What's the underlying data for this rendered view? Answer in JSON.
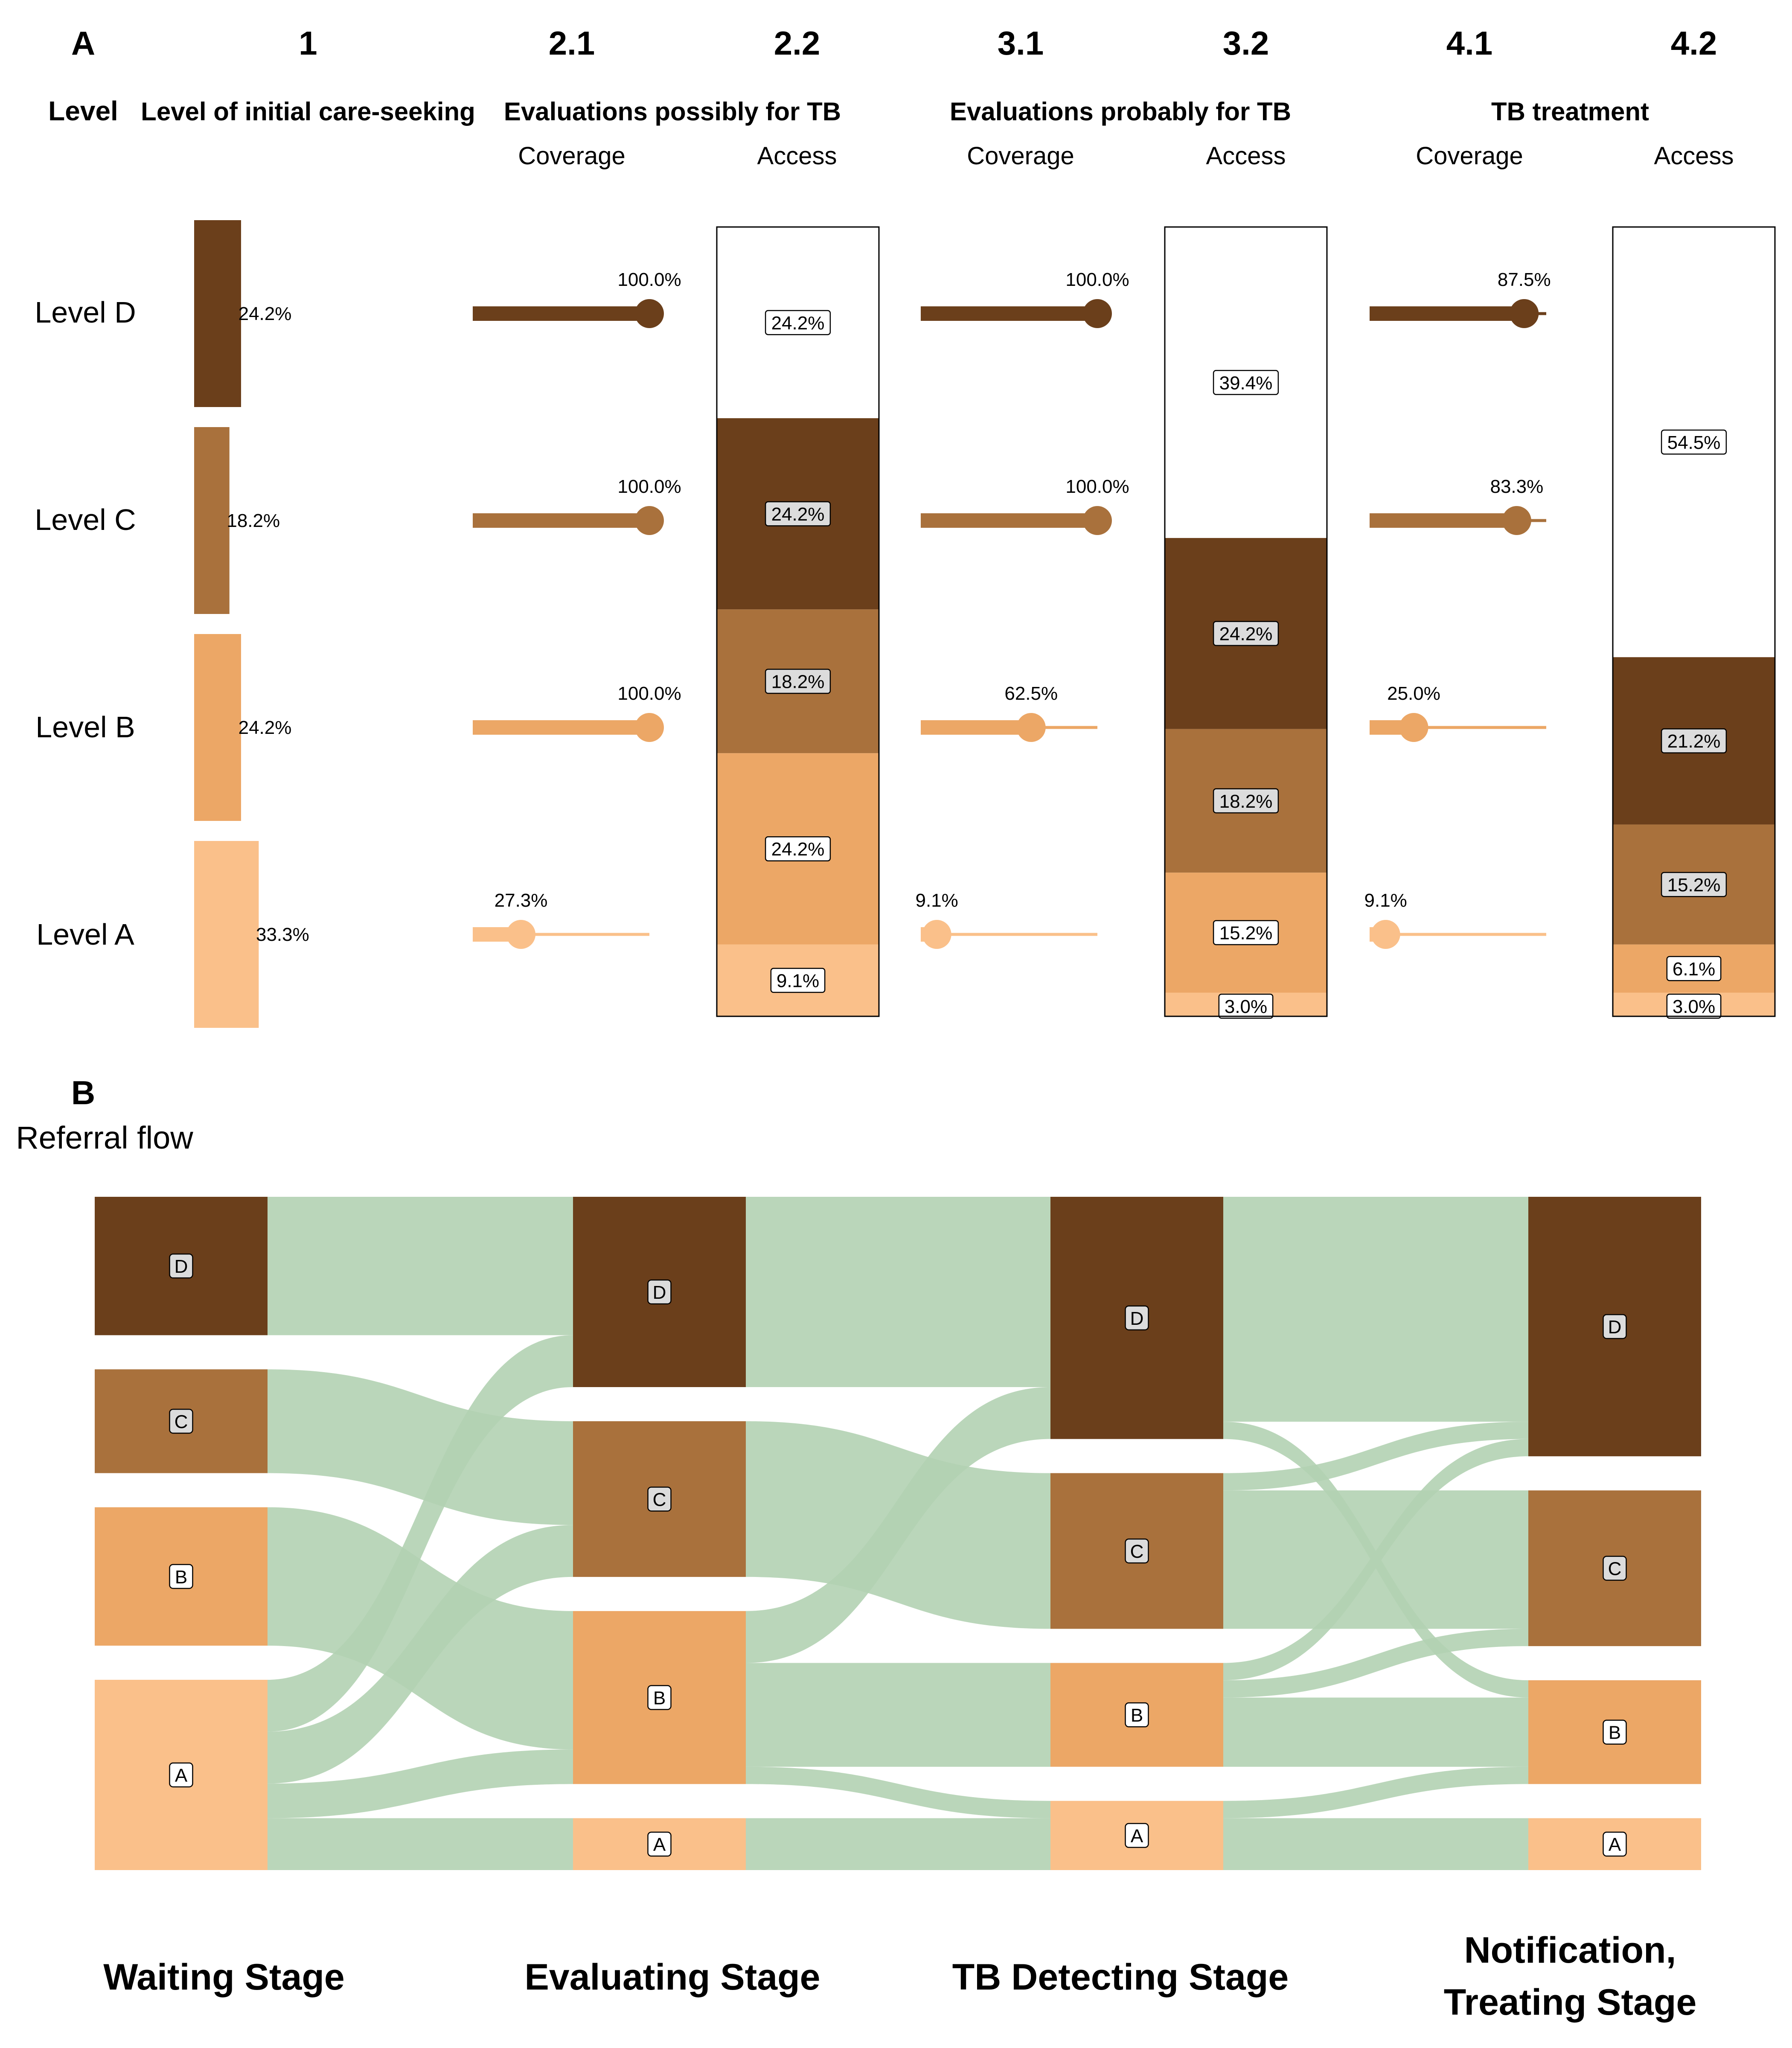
{
  "colors": {
    "D": "#6b3f1b",
    "C": "#a9713c",
    "B": "#eca766",
    "A": "#fac08a",
    "flow": "#b2d1b3",
    "flow_dark": "#7fb07f",
    "label_box": "#dcdcdc",
    "white_box": "#ffffff",
    "text": "#000000"
  },
  "panel_a": {
    "letter": "A",
    "level_header": "Level",
    "columns": [
      {
        "num": "1",
        "title": "Level of initial care-seeking",
        "sub": ""
      },
      {
        "num": "2.1",
        "title": "Evaluations possibly for TB",
        "sub": "Coverage"
      },
      {
        "num": "2.2",
        "title": "",
        "sub": "Access"
      },
      {
        "num": "3.1",
        "title": "Evaluations probably for TB",
        "sub": "Coverage"
      },
      {
        "num": "3.2",
        "title": "",
        "sub": "Access"
      },
      {
        "num": "4.1",
        "title": "TB treatment",
        "sub": "Coverage"
      },
      {
        "num": "4.2",
        "title": "",
        "sub": "Access"
      }
    ],
    "row_labels": [
      "Level D",
      "Level C",
      "Level B",
      "Level A"
    ]
  },
  "panel_b": {
    "letter": "B",
    "title": "Referral flow",
    "stages": [
      "Waiting Stage",
      "Evaluating Stage",
      "TB Detecting Stage",
      "Notification,\nTreating Stage"
    ],
    "node_labels": [
      "D",
      "C",
      "B",
      "A"
    ]
  },
  "chart_data": [
    {
      "type": "bar",
      "title": "Level of initial care-seeking",
      "categories": [
        "Level D",
        "Level C",
        "Level B",
        "Level A"
      ],
      "values": [
        24.2,
        18.2,
        24.2,
        33.3
      ],
      "unit": "%"
    },
    {
      "type": "scatter",
      "title": "Evaluations possibly for TB — Coverage",
      "categories": [
        "Level D",
        "Level C",
        "Level B",
        "Level A"
      ],
      "values": [
        100.0,
        100.0,
        100.0,
        27.3
      ],
      "unit": "%"
    },
    {
      "type": "bar",
      "title": "Evaluations possibly for TB — Access",
      "stacked_top_to_bottom": [
        "none",
        "D",
        "C",
        "B",
        "A"
      ],
      "values": [
        24.2,
        24.2,
        18.2,
        24.2,
        9.1
      ],
      "unit": "%"
    },
    {
      "type": "scatter",
      "title": "Evaluations probably for TB — Coverage",
      "categories": [
        "Level D",
        "Level C",
        "Level B",
        "Level A"
      ],
      "values": [
        100.0,
        100.0,
        62.5,
        9.1
      ],
      "unit": "%"
    },
    {
      "type": "bar",
      "title": "Evaluations probably for TB — Access",
      "stacked_top_to_bottom": [
        "none",
        "D",
        "C",
        "B",
        "A"
      ],
      "values": [
        39.4,
        24.2,
        18.2,
        15.2,
        3.0
      ],
      "unit": "%"
    },
    {
      "type": "scatter",
      "title": "TB treatment — Coverage",
      "categories": [
        "Level D",
        "Level C",
        "Level B",
        "Level A"
      ],
      "values": [
        87.5,
        83.3,
        25.0,
        9.1
      ],
      "unit": "%"
    },
    {
      "type": "bar",
      "title": "TB treatment — Access",
      "stacked_top_to_bottom": [
        "none",
        "D",
        "C",
        "B",
        "A"
      ],
      "values": [
        54.5,
        21.2,
        15.2,
        6.1,
        3.0
      ],
      "unit": "%"
    },
    {
      "type": "sankey",
      "title": "Referral flow",
      "stages": [
        "Waiting Stage",
        "Evaluating Stage",
        "TB Detecting Stage",
        "Notification, Treating Stage"
      ],
      "nodes": [
        {
          "D": 8,
          "C": 6,
          "B": 8,
          "A": 11
        },
        {
          "D": 11,
          "C": 9,
          "B": 10,
          "A": 3
        },
        {
          "D": 14,
          "C": 9,
          "B": 6,
          "A": 4
        },
        {
          "D": 15,
          "C": 9,
          "B": 6,
          "A": 3
        }
      ],
      "flows": [
        {
          "stage": 0,
          "from": "D",
          "to": "D",
          "value": 8
        },
        {
          "stage": 0,
          "from": "C",
          "to": "C",
          "value": 6
        },
        {
          "stage": 0,
          "from": "B",
          "to": "B",
          "value": 8
        },
        {
          "stage": 0,
          "from": "A",
          "to": "D",
          "value": 3
        },
        {
          "stage": 0,
          "from": "A",
          "to": "C",
          "value": 3
        },
        {
          "stage": 0,
          "from": "A",
          "to": "B",
          "value": 2
        },
        {
          "stage": 0,
          "from": "A",
          "to": "A",
          "value": 3
        },
        {
          "stage": 1,
          "from": "D",
          "to": "D",
          "value": 11
        },
        {
          "stage": 1,
          "from": "C",
          "to": "C",
          "value": 9
        },
        {
          "stage": 1,
          "from": "B",
          "to": "D",
          "value": 3
        },
        {
          "stage": 1,
          "from": "B",
          "to": "B",
          "value": 6
        },
        {
          "stage": 1,
          "from": "B",
          "to": "A",
          "value": 1
        },
        {
          "stage": 1,
          "from": "A",
          "to": "A",
          "value": 3
        },
        {
          "stage": 2,
          "from": "D",
          "to": "D",
          "value": 13
        },
        {
          "stage": 2,
          "from": "D",
          "to": "B",
          "value": 1
        },
        {
          "stage": 2,
          "from": "C",
          "to": "D",
          "value": 1
        },
        {
          "stage": 2,
          "from": "C",
          "to": "C",
          "value": 8
        },
        {
          "stage": 2,
          "from": "B",
          "to": "D",
          "value": 1
        },
        {
          "stage": 2,
          "from": "B",
          "to": "C",
          "value": 1
        },
        {
          "stage": 2,
          "from": "B",
          "to": "B",
          "value": 4
        },
        {
          "stage": 2,
          "from": "A",
          "to": "B",
          "value": 1
        },
        {
          "stage": 2,
          "from": "A",
          "to": "A",
          "value": 3
        }
      ]
    }
  ]
}
